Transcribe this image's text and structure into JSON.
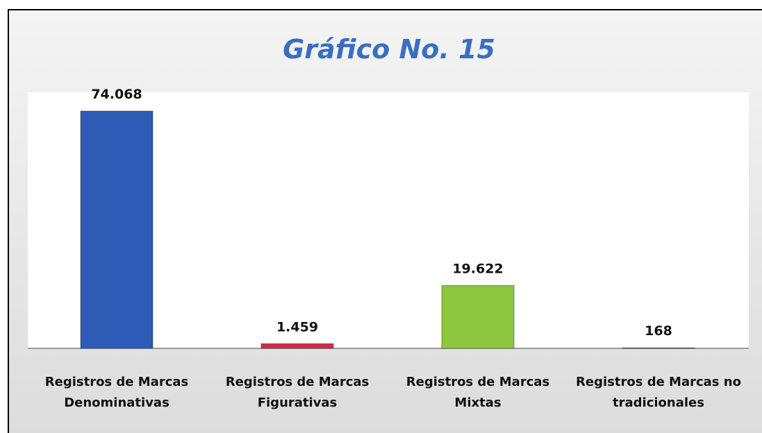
{
  "chart_data": {
    "type": "bar",
    "title": "Gráfico No. 15",
    "categories": [
      "Registros de Marcas Denominativas",
      "Registros de Marcas Figurativas",
      "Registros de Marcas Mixtas",
      "Registros de Marcas no tradicionales"
    ],
    "values": [
      74068,
      1459,
      19622,
      168
    ],
    "value_labels": [
      "74.068",
      "1.459",
      "19.622",
      "168"
    ],
    "colors": [
      "#2d5bb5",
      "#d42748",
      "#8cc63e",
      "#9b7fc4"
    ]
  }
}
